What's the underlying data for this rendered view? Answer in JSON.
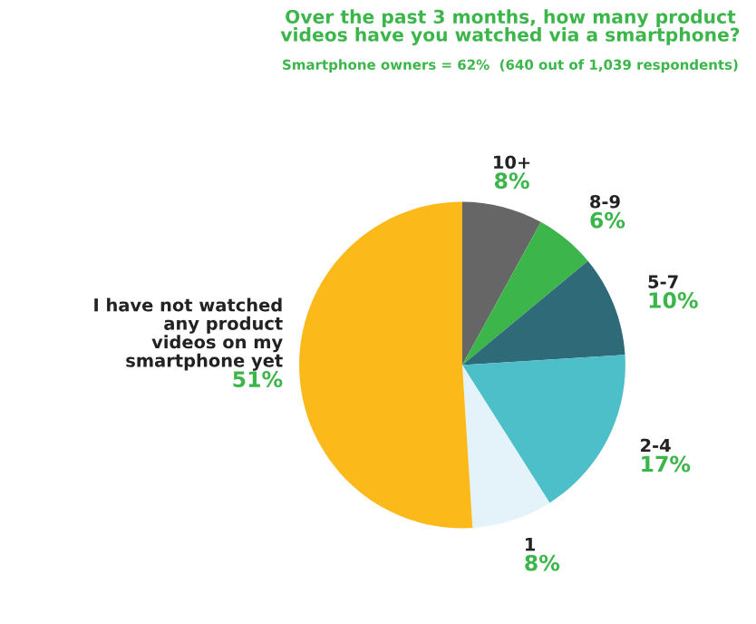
{
  "chart_data": {
    "type": "pie",
    "title": "Over the past 3 months, how many product\nvideos have you watched via a smartphone?",
    "subtitle": "Smartphone owners = 62%  (640 out of 1,039 respondents)",
    "categories": [
      "10+",
      "8-9",
      "5-7",
      "2-4",
      "1",
      "I have not watched\nany product\nvideos on my\nsmartphone yet"
    ],
    "values": [
      8,
      6,
      10,
      17,
      8,
      51
    ],
    "colors": [
      "#666666",
      "#3cb64a",
      "#2e6a78",
      "#4dbfc9",
      "#e4f3f9",
      "#fbb91a"
    ],
    "value_labels": [
      "8%",
      "6%",
      "10%",
      "17%",
      "8%",
      "51%"
    ],
    "legend": false
  }
}
